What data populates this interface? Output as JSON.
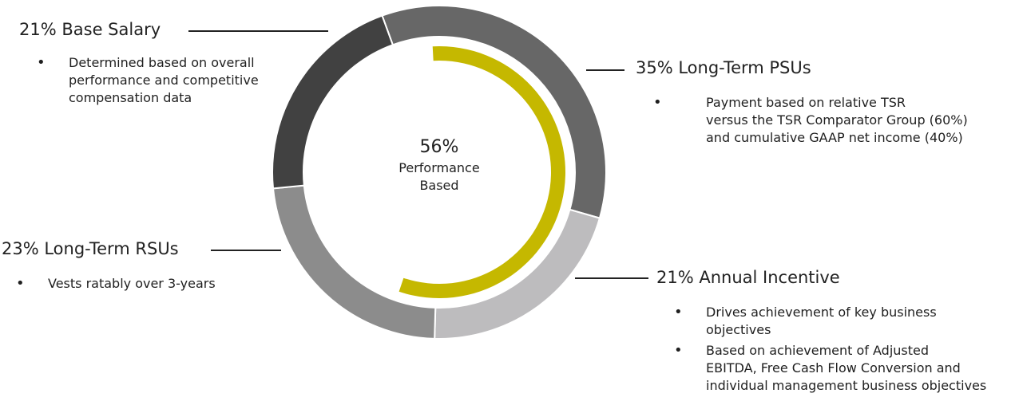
{
  "chart_data": {
    "type": "pie",
    "variant": "donut",
    "slices": [
      {
        "label": "35% Long-Term PSUs",
        "value": 35,
        "color": "#676767"
      },
      {
        "label": "21% Annual Incentive",
        "value": 21,
        "color": "#bdbcbe"
      },
      {
        "label": "23% Long-Term RSUs",
        "value": 23,
        "color": "#8c8c8c"
      },
      {
        "label": "21% Base Salary",
        "value": 21,
        "color": "#414141"
      }
    ],
    "start_angle_deg": -20,
    "performance_arc": {
      "value": 56,
      "color": "#c5b800"
    },
    "center": {
      "percent": "56%",
      "line1": "Performance",
      "line2": "Based"
    },
    "legend_placement": "around"
  },
  "callouts": {
    "base_salary": {
      "heading": "21% Base Salary",
      "bullets": [
        "Determined based on overall",
        "performance and competitive",
        "compensation data"
      ]
    },
    "psus": {
      "heading": "35% Long-Term PSUs",
      "bullets": [
        "Payment based on relative TSR",
        "versus the TSR Comparator Group (60%)",
        "and cumulative GAAP net income (40%)"
      ]
    },
    "rsus": {
      "heading": "23% Long-Term RSUs",
      "bullets": [
        "Vests ratably over 3-years"
      ]
    },
    "annual": {
      "heading": "21% Annual Incentive",
      "bullets": [
        [
          "Drives achievement of key business",
          "objectives"
        ],
        [
          "Based on achievement of Adjusted",
          "EBITDA, Free Cash Flow Conversion and",
          "individual management business objectives"
        ]
      ]
    }
  }
}
